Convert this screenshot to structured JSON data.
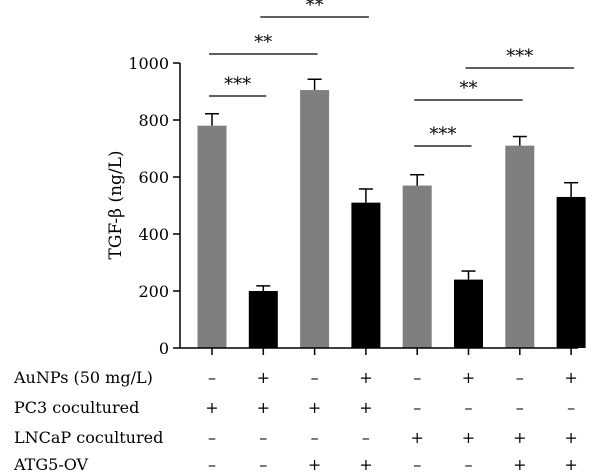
{
  "chart_data": {
    "type": "bar",
    "title": "",
    "xlabel": "",
    "ylabel": "TGF-β (ng/L)",
    "ylim": [
      0,
      1000
    ],
    "yticks": [
      0,
      200,
      400,
      600,
      800,
      1000
    ],
    "bars": [
      {
        "value": 780,
        "error": 42,
        "color": "#7f7f7f"
      },
      {
        "value": 200,
        "error": 18,
        "color": "#000000"
      },
      {
        "value": 905,
        "error": 38,
        "color": "#7f7f7f"
      },
      {
        "value": 510,
        "error": 48,
        "color": "#000000"
      },
      {
        "value": 570,
        "error": 38,
        "color": "#7f7f7f"
      },
      {
        "value": 240,
        "error": 30,
        "color": "#000000"
      },
      {
        "value": 710,
        "error": 32,
        "color": "#7f7f7f"
      },
      {
        "value": 530,
        "error": 50,
        "color": "#000000"
      }
    ],
    "significance": [
      {
        "from": 0,
        "to": 1,
        "label": "***"
      },
      {
        "from": 0,
        "to": 2,
        "label": "**"
      },
      {
        "from": 1,
        "to": 3,
        "label": "**"
      },
      {
        "from": 4,
        "to": 5,
        "label": "***"
      },
      {
        "from": 4,
        "to": 6,
        "label": "**"
      },
      {
        "from": 5,
        "to": 7,
        "label": "***"
      }
    ],
    "conditions": [
      {
        "label": "AuNPs (50 mg/L)",
        "values": [
          "–",
          "+",
          "–",
          "+",
          "–",
          "+",
          "–",
          "+"
        ]
      },
      {
        "label": "PC3 cocultured",
        "values": [
          "+",
          "+",
          "+",
          "+",
          "–",
          "–",
          "–",
          "–"
        ]
      },
      {
        "label": "LNCaP cocultured",
        "values": [
          "–",
          "–",
          "–",
          "–",
          "+",
          "+",
          "+",
          "+"
        ]
      },
      {
        "label": "ATG5-OV",
        "values": [
          "–",
          "–",
          "+",
          "+",
          "–",
          "–",
          "+",
          "+"
        ]
      }
    ]
  }
}
